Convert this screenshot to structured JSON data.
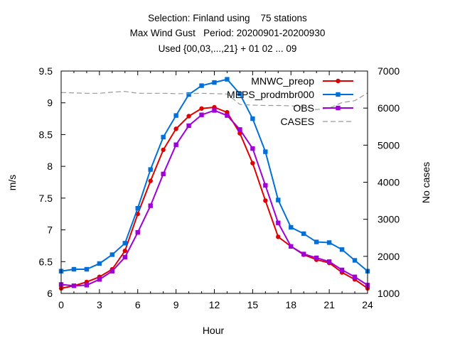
{
  "chart_data": {
    "type": "line",
    "title_lines": [
      "Selection: Finland using    75 stations",
      "Max Wind Gust   Period: 20200901-20200930",
      "Used {00,03,...,21} + 01 02 ... 09"
    ],
    "xlabel": "Hour",
    "ylabel": "m/s",
    "y2label": "No cases",
    "xlim": [
      0,
      24
    ],
    "ylim": [
      6,
      9.5
    ],
    "y2lim": [
      1000,
      7000
    ],
    "xticks": [
      "0",
      "3",
      "6",
      "9",
      "12",
      "15",
      "18",
      "21",
      "24"
    ],
    "yticks": [
      "6",
      "6.5",
      "7",
      "7.5",
      "8",
      "8.5",
      "9",
      "9.5"
    ],
    "y2ticks": [
      "1000",
      "2000",
      "3000",
      "4000",
      "5000",
      "6000",
      "7000"
    ],
    "legend_position": "top-right",
    "grid": false,
    "x": [
      0,
      1,
      2,
      3,
      4,
      5,
      6,
      7,
      8,
      9,
      10,
      11,
      12,
      13,
      14,
      15,
      16,
      17,
      18,
      19,
      20,
      21,
      22,
      23,
      24
    ],
    "series": [
      {
        "name": "MNWC_preop",
        "axis": "y",
        "color": "#e00000",
        "marker": "circle",
        "values": [
          6.08,
          6.12,
          6.18,
          6.26,
          6.38,
          6.67,
          7.25,
          7.77,
          8.26,
          8.59,
          8.79,
          8.91,
          8.93,
          8.85,
          8.52,
          8.05,
          7.46,
          6.89,
          6.74,
          6.61,
          6.53,
          6.48,
          6.33,
          6.22,
          6.08
        ]
      },
      {
        "name": "MEPS_prodmbr000",
        "axis": "y",
        "color": "#0070d8",
        "marker": "square",
        "values": [
          6.35,
          6.38,
          6.38,
          6.47,
          6.61,
          6.79,
          7.34,
          7.95,
          8.46,
          8.8,
          9.13,
          9.27,
          9.32,
          9.37,
          9.14,
          8.75,
          8.23,
          7.47,
          7.04,
          6.94,
          6.81,
          6.8,
          6.69,
          6.52,
          6.35
        ]
      },
      {
        "name": "OBS",
        "axis": "y",
        "color": "#a000d8",
        "marker": "square",
        "values": [
          6.14,
          6.12,
          6.13,
          6.22,
          6.35,
          6.57,
          6.96,
          7.38,
          7.88,
          8.34,
          8.64,
          8.81,
          8.88,
          8.8,
          8.58,
          8.28,
          7.7,
          7.11,
          6.74,
          6.62,
          6.56,
          6.5,
          6.37,
          6.26,
          6.13
        ]
      },
      {
        "name": "CASES",
        "axis": "y2",
        "color": "#999999",
        "dashed": true,
        "values": [
          6420,
          6410,
          6400,
          6400,
          6430,
          6450,
          6400,
          6400,
          6400,
          6390,
          6390,
          6400,
          6390,
          6380,
          6100,
          6080,
          6070,
          6070,
          6060,
          6040,
          5960,
          6000,
          6150,
          6200,
          6410
        ]
      }
    ]
  }
}
